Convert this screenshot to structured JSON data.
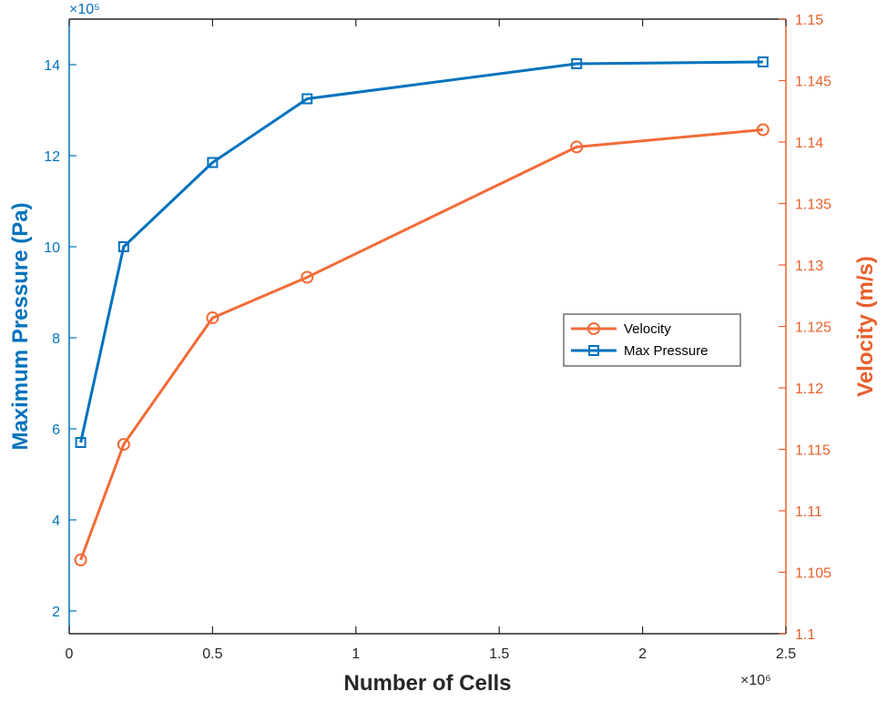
{
  "chart_data": {
    "type": "line",
    "title": "",
    "xlabel": "Number of Cells",
    "ylabel_left": "Maximum Pressure (Pa)",
    "ylabel_right": "Velocity (m/s)",
    "x_exponent_label": "×10⁶",
    "yleft_exponent_label": "×10⁵",
    "xlim": [
      0,
      2.5
    ],
    "ylim_left": [
      1.5,
      15
    ],
    "ylim_right": [
      1.1,
      1.15
    ],
    "x_ticks": [
      0,
      0.5,
      1,
      1.5,
      2,
      2.5
    ],
    "x_tick_labels": [
      "0",
      "0.5",
      "1",
      "1.5",
      "2",
      "2.5"
    ],
    "yleft_ticks": [
      2,
      4,
      6,
      8,
      10,
      12,
      14
    ],
    "yleft_tick_labels": [
      "2",
      "4",
      "6",
      "8",
      "10",
      "12",
      "14"
    ],
    "yright_ticks": [
      1.1,
      1.105,
      1.11,
      1.115,
      1.12,
      1.125,
      1.13,
      1.135,
      1.14,
      1.145,
      1.15
    ],
    "yright_tick_labels": [
      "1.1",
      "1.105",
      "1.11",
      "1.115",
      "1.12",
      "1.125",
      "1.13",
      "1.135",
      "1.14",
      "1.145",
      "1.15"
    ],
    "grid": false,
    "legend_position": "center-right",
    "colors": {
      "pressure": "#0072BD",
      "velocity": "#F26B38",
      "axis_left": "#0072BD",
      "axis_right": "#E8602C",
      "frame": "#262626"
    },
    "series": [
      {
        "name": "Velocity",
        "axis": "right",
        "marker": "circle",
        "x": [
          0.04,
          0.19,
          0.5,
          0.83,
          1.77,
          2.42
        ],
        "y": [
          1.106,
          1.1154,
          1.1257,
          1.129,
          1.1396,
          1.141
        ]
      },
      {
        "name": "Max Pressure",
        "axis": "left",
        "marker": "square",
        "x": [
          0.04,
          0.19,
          0.5,
          0.83,
          1.77,
          2.42
        ],
        "y": [
          5.7,
          10.0,
          11.85,
          13.25,
          14.02,
          14.06
        ]
      }
    ]
  }
}
